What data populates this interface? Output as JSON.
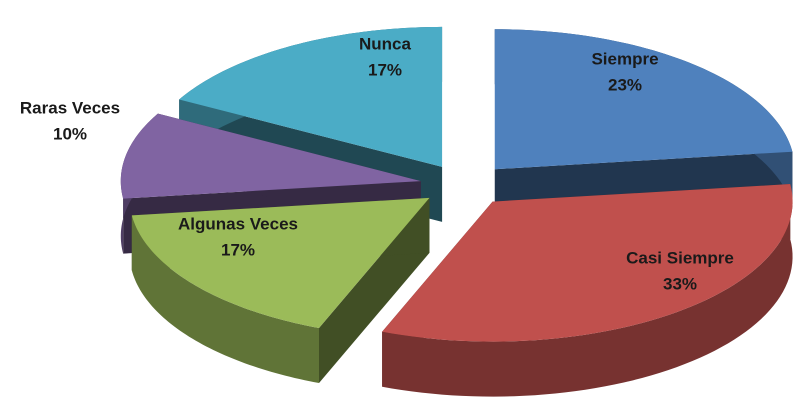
{
  "chart_data": {
    "type": "pie3d",
    "categories": [
      "Siempre",
      "Casi Siempre",
      "Algunas Veces",
      "Raras Veces",
      "Nunca"
    ],
    "values": [
      23,
      33,
      17,
      10,
      17
    ],
    "value_labels": [
      "23%",
      "33%",
      "17%",
      "10%",
      "17%"
    ],
    "colors": [
      "#4f81bd",
      "#c0504d",
      "#9bbb59",
      "#8064a2",
      "#4bacc6"
    ]
  }
}
